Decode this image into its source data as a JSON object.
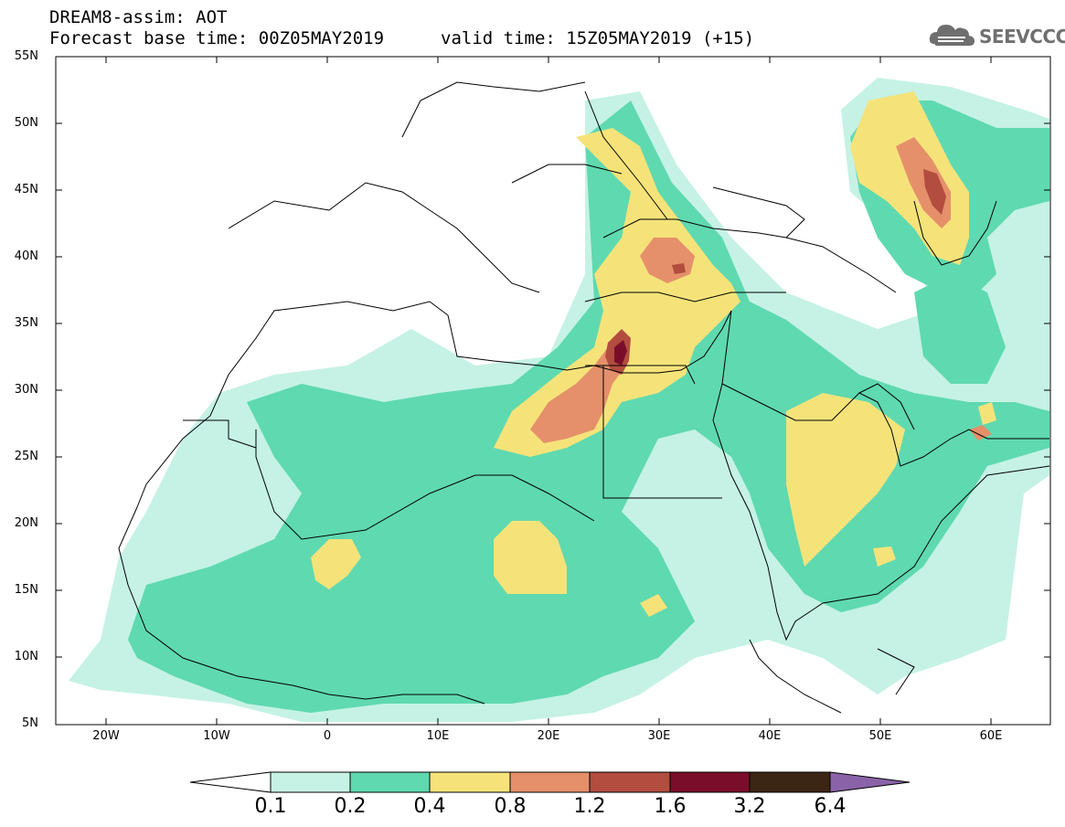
{
  "header": {
    "title_line1": "DREAM8-assim: AOT",
    "forecast_base": "Forecast base time: 00Z05MAY2019",
    "valid_time": "valid time: 15Z05MAY2019 (+15)"
  },
  "logo": {
    "text": "SEEVCCC",
    "icon": "cloud-icon"
  },
  "map": {
    "variable": "AOT",
    "lat_range": [
      5,
      55
    ],
    "lon_range": [
      -25,
      65
    ],
    "lat_labels": [
      "55N",
      "50N",
      "45N",
      "40N",
      "35N",
      "30N",
      "25N",
      "20N",
      "15N",
      "10N",
      "5N"
    ],
    "lon_labels": [
      "20W",
      "10W",
      "0",
      "10E",
      "20E",
      "30E",
      "40E",
      "50E",
      "60E"
    ]
  },
  "colorbar": {
    "labels": [
      "0.1",
      "0.2",
      "0.4",
      "0.8",
      "1.2",
      "1.6",
      "3.2",
      "6.4"
    ],
    "colors": [
      "#ffffff",
      "#c5f2e4",
      "#5fd9b0",
      "#f5e37a",
      "#e5906a",
      "#b24d3f",
      "#7a0e2a",
      "#3b2515",
      "#8a62a8"
    ]
  }
}
